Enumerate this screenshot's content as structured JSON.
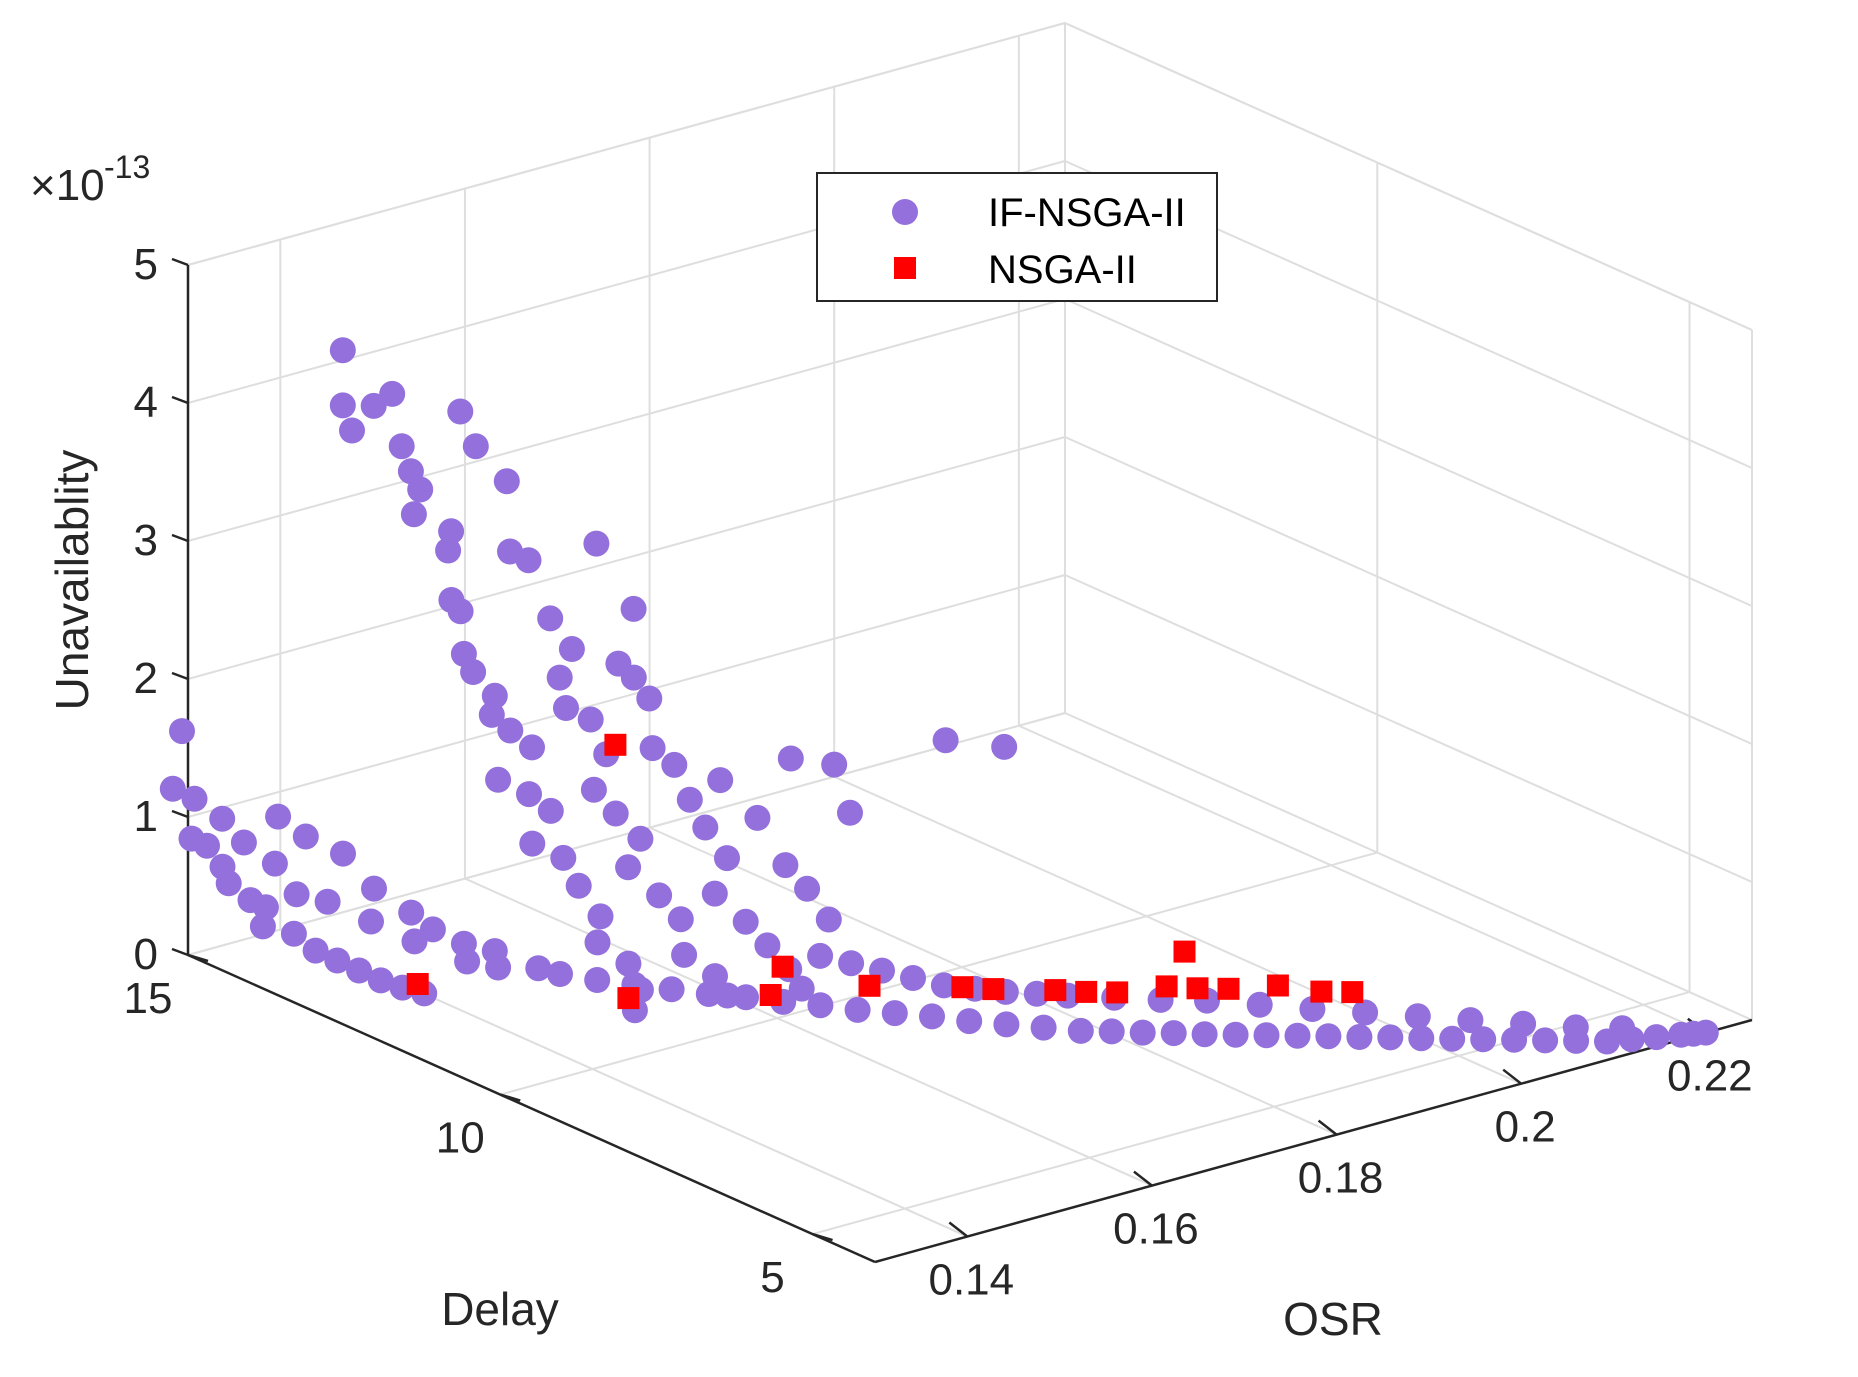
{
  "chart_data": {
    "type": "scatter",
    "title": "",
    "xlabel": "OSR",
    "ylabel": "Delay",
    "zlabel": "Unavailablity",
    "x_ticks": [
      "0.14",
      "0.16",
      "0.18",
      "0.2",
      "0.22"
    ],
    "y_ticks": [
      "5",
      "10",
      "15"
    ],
    "z_ticks": [
      "0",
      "1",
      "2",
      "3",
      "4",
      "5"
    ],
    "z_exponent": "×10",
    "z_exponent_power": "-13",
    "xlim": [
      0.13,
      0.225
    ],
    "ylim": [
      4,
      15
    ],
    "zlim": [
      0,
      5
    ],
    "legend_position": "top-center",
    "series": [
      {
        "name": "IF-NSGA-II",
        "marker": "circle",
        "color": "#9370db",
        "points": [
          [
            0.14,
            14.0,
            4.4
          ],
          [
            0.14,
            14.0,
            4.0
          ],
          [
            0.141,
            14.0,
            3.8
          ],
          [
            0.142,
            13.8,
            4.0
          ],
          [
            0.144,
            13.8,
            4.05
          ],
          [
            0.143,
            13.5,
            3.75
          ],
          [
            0.144,
            13.5,
            3.55
          ],
          [
            0.145,
            13.5,
            3.4
          ],
          [
            0.145,
            13.6,
            3.2
          ],
          [
            0.146,
            13.2,
            3.0
          ],
          [
            0.147,
            13.3,
            3.1
          ],
          [
            0.145,
            13.0,
            2.7
          ],
          [
            0.146,
            13.0,
            2.6
          ],
          [
            0.145,
            12.8,
            2.35
          ],
          [
            0.146,
            12.8,
            2.2
          ],
          [
            0.147,
            12.6,
            2.05
          ],
          [
            0.146,
            12.5,
            1.95
          ],
          [
            0.148,
            12.5,
            1.8
          ],
          [
            0.149,
            12.3,
            1.7
          ],
          [
            0.146,
            12.4,
            1.5
          ],
          [
            0.148,
            12.2,
            1.4
          ],
          [
            0.149,
            12.0,
            1.3
          ],
          [
            0.147,
            12.0,
            1.1
          ],
          [
            0.149,
            11.8,
            1.0
          ],
          [
            0.15,
            11.7,
            0.8
          ],
          [
            0.151,
            11.5,
            0.6
          ],
          [
            0.15,
            11.4,
            0.45
          ],
          [
            0.152,
            11.2,
            0.3
          ],
          [
            0.152,
            11.0,
            0.15
          ],
          [
            0.15,
            10.8,
            0.08
          ],
          [
            0.148,
            13.3,
            3.95
          ],
          [
            0.149,
            13.2,
            3.7
          ],
          [
            0.151,
            13.0,
            3.45
          ],
          [
            0.15,
            12.8,
            3.0
          ],
          [
            0.152,
            12.8,
            2.9
          ],
          [
            0.153,
            12.6,
            2.5
          ],
          [
            0.154,
            12.4,
            2.3
          ],
          [
            0.152,
            12.3,
            2.15
          ],
          [
            0.152,
            12.2,
            1.95
          ],
          [
            0.154,
            12.1,
            1.85
          ],
          [
            0.155,
            12.0,
            1.6
          ],
          [
            0.153,
            11.9,
            1.4
          ],
          [
            0.154,
            11.7,
            1.25
          ],
          [
            0.156,
            11.6,
            1.05
          ],
          [
            0.154,
            11.5,
            0.9
          ],
          [
            0.156,
            11.3,
            0.7
          ],
          [
            0.157,
            11.1,
            0.55
          ],
          [
            0.156,
            10.9,
            0.35
          ],
          [
            0.158,
            10.7,
            0.2
          ],
          [
            0.158,
            10.5,
            0.1
          ],
          [
            0.158,
            12.6,
            2.95
          ],
          [
            0.16,
            12.3,
            2.5
          ],
          [
            0.157,
            12.1,
            2.2
          ],
          [
            0.158,
            12.0,
            2.1
          ],
          [
            0.159,
            11.9,
            1.95
          ],
          [
            0.158,
            11.7,
            1.65
          ],
          [
            0.159,
            11.5,
            1.55
          ],
          [
            0.16,
            11.4,
            1.3
          ],
          [
            0.161,
            11.3,
            1.1
          ],
          [
            0.162,
            11.1,
            0.9
          ],
          [
            0.16,
            11.0,
            0.7
          ],
          [
            0.162,
            10.8,
            0.5
          ],
          [
            0.163,
            10.6,
            0.35
          ],
          [
            0.164,
            10.4,
            0.2
          ],
          [
            0.164,
            10.2,
            0.1
          ],
          [
            0.166,
            11.8,
            1.25
          ],
          [
            0.168,
            11.5,
            1.0
          ],
          [
            0.169,
            11.2,
            0.7
          ],
          [
            0.17,
            11.0,
            0.55
          ],
          [
            0.171,
            10.8,
            0.35
          ],
          [
            0.175,
            12.0,
            1.2
          ],
          [
            0.177,
            11.6,
            1.2
          ],
          [
            0.176,
            11.2,
            0.95
          ],
          [
            0.128,
            14.8,
            1.7
          ],
          [
            0.127,
            14.8,
            1.3
          ],
          [
            0.128,
            14.6,
            1.25
          ],
          [
            0.127,
            14.5,
            1.0
          ],
          [
            0.128,
            14.4,
            0.95
          ],
          [
            0.129,
            14.3,
            0.8
          ],
          [
            0.129,
            14.2,
            0.7
          ],
          [
            0.13,
            14.0,
            0.6
          ],
          [
            0.131,
            13.9,
            0.55
          ],
          [
            0.13,
            13.8,
            0.45
          ],
          [
            0.132,
            13.6,
            0.4
          ],
          [
            0.133,
            13.4,
            0.3
          ],
          [
            0.134,
            13.2,
            0.25
          ],
          [
            0.135,
            13.0,
            0.2
          ],
          [
            0.136,
            12.8,
            0.15
          ],
          [
            0.137,
            12.6,
            0.12
          ],
          [
            0.138,
            12.4,
            0.1
          ],
          [
            0.133,
            14.0,
            1.15
          ],
          [
            0.136,
            14.0,
            0.95
          ],
          [
            0.138,
            13.7,
            0.85
          ],
          [
            0.14,
            13.5,
            0.6
          ],
          [
            0.142,
            13.2,
            0.45
          ],
          [
            0.143,
            13.0,
            0.35
          ],
          [
            0.145,
            12.8,
            0.25
          ],
          [
            0.147,
            12.6,
            0.2
          ],
          [
            0.131,
            14.6,
            1.05
          ],
          [
            0.132,
            14.4,
            0.9
          ],
          [
            0.134,
            14.2,
            0.75
          ],
          [
            0.135,
            14.0,
            0.55
          ],
          [
            0.137,
            13.8,
            0.5
          ],
          [
            0.139,
            13.4,
            0.4
          ],
          [
            0.141,
            13.0,
            0.3
          ],
          [
            0.144,
            12.6,
            0.18
          ],
          [
            0.146,
            12.4,
            0.14
          ],
          [
            0.149,
            12.2,
            0.12
          ],
          [
            0.15,
            12.0,
            0.1
          ],
          [
            0.152,
            11.7,
            0.08
          ],
          [
            0.154,
            11.4,
            0.07
          ],
          [
            0.156,
            11.1,
            0.06
          ],
          [
            0.158,
            10.8,
            0.05
          ],
          [
            0.16,
            10.5,
            0.05
          ],
          [
            0.162,
            10.2,
            0.04
          ],
          [
            0.164,
            9.9,
            0.04
          ],
          [
            0.166,
            9.6,
            0.03
          ],
          [
            0.168,
            9.3,
            0.03
          ],
          [
            0.17,
            9.0,
            0.03
          ],
          [
            0.172,
            8.7,
            0.02
          ],
          [
            0.174,
            8.4,
            0.02
          ],
          [
            0.176,
            8.1,
            0.02
          ],
          [
            0.178,
            7.8,
            0.02
          ],
          [
            0.18,
            7.6,
            0.02
          ],
          [
            0.182,
            7.4,
            0.015
          ],
          [
            0.184,
            7.2,
            0.015
          ],
          [
            0.186,
            7.0,
            0.01
          ],
          [
            0.188,
            6.8,
            0.01
          ],
          [
            0.19,
            6.6,
            0.01
          ],
          [
            0.192,
            6.4,
            0.01
          ],
          [
            0.194,
            6.2,
            0.01
          ],
          [
            0.196,
            6.0,
            0.008
          ],
          [
            0.198,
            5.8,
            0.008
          ],
          [
            0.2,
            5.6,
            0.006
          ],
          [
            0.202,
            5.4,
            0.006
          ],
          [
            0.204,
            5.2,
            0.005
          ],
          [
            0.206,
            5.0,
            0.005
          ],
          [
            0.208,
            4.8,
            0.004
          ],
          [
            0.21,
            4.6,
            0.004
          ],
          [
            0.212,
            4.4,
            0.003
          ],
          [
            0.214,
            4.3,
            0.003
          ],
          [
            0.216,
            4.2,
            0.002
          ],
          [
            0.218,
            4.1,
            0.002
          ],
          [
            0.219,
            4.05,
            0.001
          ],
          [
            0.22,
            4.0,
            0.001
          ],
          [
            0.166,
            10.2,
            0.3
          ],
          [
            0.168,
            10.0,
            0.25
          ],
          [
            0.17,
            9.8,
            0.2
          ],
          [
            0.172,
            9.6,
            0.15
          ],
          [
            0.174,
            9.4,
            0.1
          ],
          [
            0.176,
            9.2,
            0.08
          ],
          [
            0.178,
            9.0,
            0.06
          ],
          [
            0.18,
            8.8,
            0.05
          ],
          [
            0.182,
            8.6,
            0.04
          ],
          [
            0.185,
            8.3,
            0.03
          ],
          [
            0.188,
            8.0,
            0.02
          ],
          [
            0.191,
            7.7,
            0.02
          ],
          [
            0.194,
            7.3,
            0.015
          ],
          [
            0.197,
            6.9,
            0.01
          ],
          [
            0.2,
            6.5,
            0.01
          ],
          [
            0.203,
            6.1,
            0.008
          ],
          [
            0.206,
            5.7,
            0.006
          ],
          [
            0.209,
            5.3,
            0.005
          ],
          [
            0.212,
            4.9,
            0.004
          ],
          [
            0.215,
            4.6,
            0.003
          ],
          [
            0.185,
            11.0,
            1.35
          ],
          [
            0.19,
            10.8,
            1.25
          ]
        ]
      },
      {
        "name": "NSGA-II",
        "marker": "square",
        "color": "#ff0000",
        "points": [
          [
            0.14,
            12.8,
            0.05
          ],
          [
            0.152,
            11.2,
            0.05
          ],
          [
            0.156,
            12.0,
            1.65
          ],
          [
            0.162,
            10.4,
            0.05
          ],
          [
            0.166,
            10.8,
            0.1
          ],
          [
            0.17,
            10.0,
            0.05
          ],
          [
            0.176,
            9.4,
            0.05
          ],
          [
            0.178,
            9.2,
            0.04
          ],
          [
            0.182,
            8.8,
            0.04
          ],
          [
            0.184,
            8.6,
            0.03
          ],
          [
            0.186,
            8.4,
            0.03
          ],
          [
            0.196,
            8.8,
            0.06
          ],
          [
            0.19,
            8.2,
            0.04
          ],
          [
            0.192,
            8.0,
            0.03
          ],
          [
            0.194,
            7.8,
            0.03
          ],
          [
            0.198,
            7.6,
            0.02
          ],
          [
            0.2,
            7.2,
            0.02
          ],
          [
            0.202,
            7.0,
            0.02
          ]
        ]
      }
    ]
  }
}
